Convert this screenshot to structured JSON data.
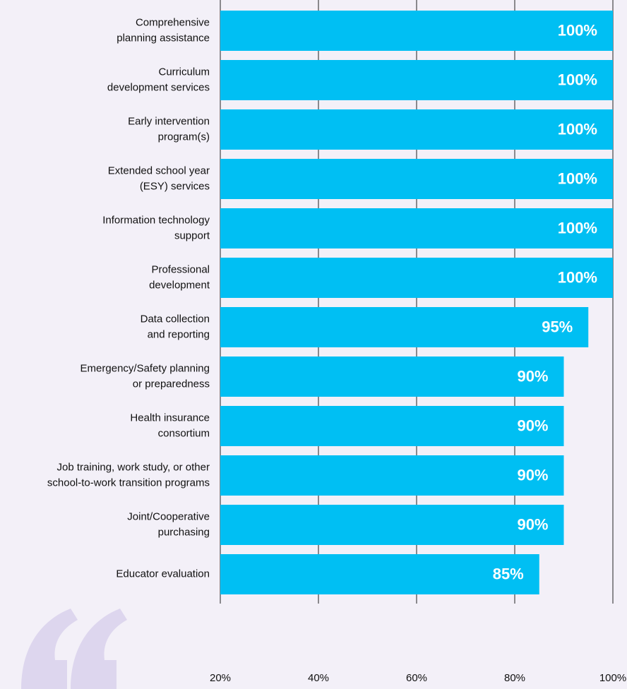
{
  "chart_data": {
    "type": "bar",
    "orientation": "horizontal",
    "categories": [
      [
        "Comprehensive",
        "planning assistance"
      ],
      [
        "Curriculum",
        "development services"
      ],
      [
        "Early intervention",
        "program(s)"
      ],
      [
        "Extended school year",
        "(ESY) services"
      ],
      [
        "Information technology",
        "support"
      ],
      [
        "Professional",
        "development"
      ],
      [
        "Data collection",
        "and reporting"
      ],
      [
        "Emergency/Safety planning",
        "or preparedness"
      ],
      [
        "Health insurance",
        "consortium"
      ],
      [
        "Job training, work study, or other",
        "school-to-work transition programs"
      ],
      [
        "Joint/Cooperative",
        "purchasing"
      ],
      [
        "Educator evaluation"
      ]
    ],
    "values": [
      100,
      100,
      100,
      100,
      100,
      100,
      95,
      90,
      90,
      90,
      90,
      85
    ],
    "value_labels": [
      "100%",
      "100%",
      "100%",
      "100%",
      "100%",
      "100%",
      "95%",
      "90%",
      "90%",
      "90%",
      "90%",
      "85%"
    ],
    "color": "#00bff3",
    "xlim": [
      20,
      100
    ],
    "xticks": [
      {
        "value": 20,
        "label": "20%"
      },
      {
        "value": 40,
        "label": "40%"
      },
      {
        "value": 60,
        "label": "60%"
      },
      {
        "value": 80,
        "label": "80%"
      },
      {
        "value": 100,
        "label": "100%"
      }
    ],
    "grid": true
  }
}
